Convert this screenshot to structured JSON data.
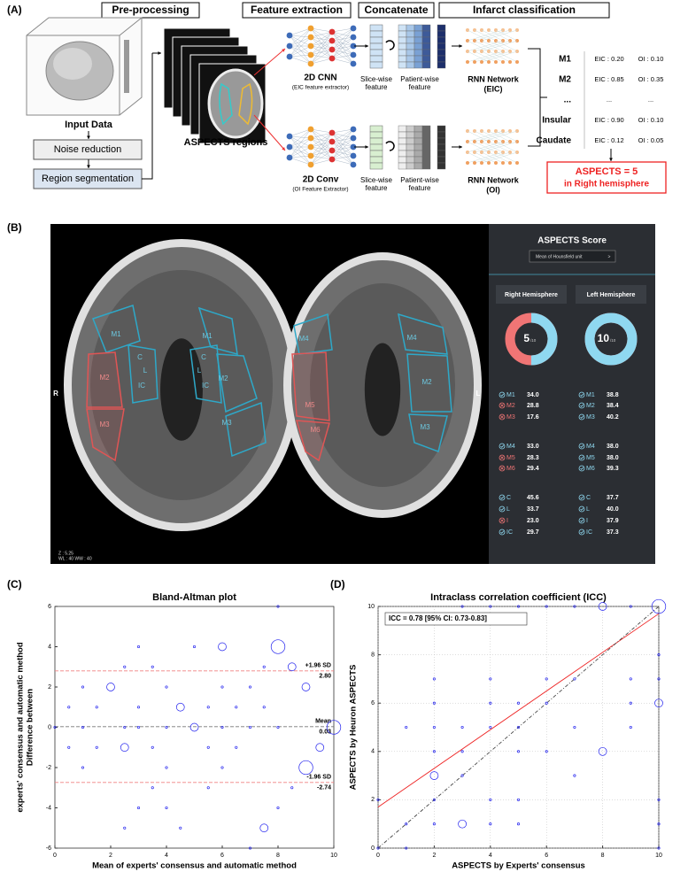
{
  "panel_a": {
    "label": "(A)",
    "steps": [
      "Pre-processing",
      "Feature extraction",
      "Concatenate",
      "Infarct classification"
    ],
    "input": "Input Data",
    "noise": "Noise reduction",
    "segmentation": "Region segmentation",
    "regions": "ASPECTS regions",
    "cnn": {
      "name": "2D CNN",
      "sub": "(EIC feature extractor)"
    },
    "conv": {
      "name": "2D Conv",
      "sub": "(OI Feature Extractor)"
    },
    "slice": [
      "Slice-wise",
      "feature"
    ],
    "patient": [
      "Patient-wise",
      "feature"
    ],
    "rnn_eic": [
      "RNN Network",
      "(EIC)"
    ],
    "rnn_oi": [
      "RNN Network",
      "(OI)"
    ],
    "results": [
      [
        "M1",
        "EIC : 0.20",
        "OI : 0.10"
      ],
      [
        "M2",
        "EIC : 0.85",
        "OI : 0.35"
      ],
      [
        "...",
        "...",
        "..."
      ],
      [
        "Insular",
        "EIC : 0.90",
        "OI : 0.10"
      ],
      [
        "Caudate",
        "EIC : 0.12",
        "OI : 0.05"
      ]
    ],
    "outcome": [
      "ASPECTS = 5",
      "in Right hemisphere"
    ]
  },
  "panel_b": {
    "label": "(B)",
    "side_r": "R",
    "side_l": "L",
    "info": [
      "Z : 5.25",
      "WL : 40 WW : 40"
    ],
    "image1_labels": [
      {
        "text": "M1",
        "infarct": false
      },
      {
        "text": "M2",
        "infarct": true
      },
      {
        "text": "M3",
        "infarct": true
      },
      {
        "text": "C",
        "infarct": false
      },
      {
        "text": "L",
        "infarct": false
      },
      {
        "text": "IC",
        "infarct": false
      },
      {
        "text": "C",
        "infarct": false
      },
      {
        "text": "L",
        "infarct": false
      },
      {
        "text": "IC",
        "infarct": false
      },
      {
        "text": "M1",
        "infarct": false
      },
      {
        "text": "M2",
        "infarct": false
      },
      {
        "text": "M3",
        "infarct": false
      }
    ],
    "image2_labels": [
      {
        "text": "M4",
        "infarct": false
      },
      {
        "text": "M5",
        "infarct": true
      },
      {
        "text": "M6",
        "infarct": true
      },
      {
        "text": "M4",
        "infarct": false
      },
      {
        "text": "M2",
        "infarct": false
      },
      {
        "text": "M3",
        "infarct": false
      }
    ],
    "title": "ASPECTS Score",
    "dropdown": "Mean of Hounsfield unit",
    "dropdown_icon": ">",
    "hemispheres": [
      {
        "name": "Right Hemisphere",
        "score": 5,
        "out_of": {
          "value": 10,
          "label": "/10"
        },
        "regions": [
          {
            "name": "M1",
            "infarct": false,
            "value": "34.0"
          },
          {
            "name": "M2",
            "infarct": true,
            "value": "28.8"
          },
          {
            "name": "M3",
            "infarct": true,
            "value": "17.6"
          },
          {
            "name": "M4",
            "infarct": false,
            "value": "33.0"
          },
          {
            "name": "M5",
            "infarct": true,
            "value": "28.3"
          },
          {
            "name": "M6",
            "infarct": true,
            "value": "29.4"
          },
          {
            "name": "C",
            "infarct": false,
            "value": "45.6"
          },
          {
            "name": "L",
            "infarct": false,
            "value": "33.7"
          },
          {
            "name": "I",
            "infarct": true,
            "value": "23.0"
          },
          {
            "name": "IC",
            "infarct": false,
            "value": "29.7"
          }
        ]
      },
      {
        "name": "Left Hemisphere",
        "score": 10,
        "out_of": {
          "value": 10,
          "label": "/10"
        },
        "regions": [
          {
            "name": "M1",
            "infarct": false,
            "value": "38.8"
          },
          {
            "name": "M2",
            "infarct": false,
            "value": "38.4"
          },
          {
            "name": "M3",
            "infarct": false,
            "value": "40.2"
          },
          {
            "name": "M4",
            "infarct": false,
            "value": "38.0"
          },
          {
            "name": "M5",
            "infarct": false,
            "value": "38.0"
          },
          {
            "name": "M6",
            "infarct": false,
            "value": "39.3"
          },
          {
            "name": "C",
            "infarct": false,
            "value": "37.7"
          },
          {
            "name": "L",
            "infarct": false,
            "value": "40.0"
          },
          {
            "name": "I",
            "infarct": false,
            "value": "37.9"
          },
          {
            "name": "IC",
            "infarct": false,
            "value": "37.3"
          }
        ]
      }
    ]
  },
  "chart_data": [
    {
      "type": "scatter",
      "label": "(C)",
      "title": "Bland-Altman plot",
      "xlabel": "Mean of experts' consensus and automatic method",
      "ylabel": [
        "Difference between",
        "experts' consensus and automatic method"
      ],
      "color": "#2222ee",
      "x": [
        8,
        3,
        5,
        6,
        8,
        2.5,
        3.5,
        7.5,
        8.5,
        1,
        2,
        4,
        6,
        7,
        9,
        0.5,
        1.5,
        3,
        4.5,
        5.5,
        6.5,
        7.5,
        0,
        1,
        2.5,
        3,
        4,
        5,
        6,
        7,
        8,
        10,
        0.5,
        1.5,
        2.5,
        3.5,
        5.5,
        6.5,
        9.5,
        1,
        4,
        6,
        9,
        3.5,
        5.5,
        8.5,
        3,
        4,
        8,
        2.5,
        4.5,
        7.5,
        7
      ],
      "y": [
        6,
        4,
        4,
        4,
        4,
        3,
        3,
        3,
        3,
        2,
        2,
        2,
        2,
        2,
        2,
        1,
        1,
        1,
        1,
        1,
        1,
        1,
        0,
        0,
        0,
        0,
        0,
        0,
        0,
        0,
        0,
        0,
        -1,
        -1,
        -1,
        -1,
        -1,
        -1,
        -1,
        -2,
        -2,
        -2,
        -2,
        -3,
        -3,
        -3,
        -4,
        -4,
        -4,
        -5,
        -5,
        -5,
        -6
      ],
      "sizes": [
        1,
        1,
        1,
        2,
        3,
        1,
        1,
        1,
        2,
        1,
        2,
        1,
        1,
        1,
        2,
        1,
        1,
        1,
        2,
        1,
        1,
        1,
        1,
        1,
        1,
        1,
        1,
        2,
        1,
        1,
        1,
        3,
        1,
        1,
        2,
        1,
        1,
        1,
        2,
        1,
        1,
        1,
        3,
        1,
        1,
        1,
        1,
        1,
        1,
        1,
        1,
        2,
        1
      ],
      "reference_lines": [
        {
          "name": "+1.96 SD",
          "value": 2.8,
          "value_label": "2.80",
          "color": "#f08080"
        },
        {
          "name": "Mean",
          "value": 0.03,
          "color": "#777777"
        },
        {
          "name": "-1.96 SD",
          "value": -2.74,
          "color": "#f08080"
        }
      ],
      "xlim": [
        0,
        10
      ],
      "ylim": [
        -6,
        6
      ],
      "xticks": [
        0,
        2,
        4,
        6,
        8,
        10
      ],
      "yticks": [
        -6,
        -4,
        -2,
        0,
        2,
        4,
        6
      ],
      "grid": false
    },
    {
      "type": "scatter",
      "label": "(D)",
      "title": "Intraclass correlation coefficient (ICC)",
      "xlabel": "ASPECTS by Experts' consensus",
      "ylabel": [
        "ASPECTS by Heuron ASPECTS"
      ],
      "annotation": "ICC = 0.78 [95% CI: 0.73-0.83]",
      "color": "#2222ee",
      "x": [
        3,
        4,
        5,
        6,
        7,
        8,
        9,
        10,
        10,
        10,
        10,
        2,
        4,
        6,
        7,
        9,
        2,
        4,
        5,
        6,
        9,
        1,
        2,
        3,
        4,
        5,
        7,
        9,
        2,
        3,
        5,
        6,
        8,
        2,
        3,
        7,
        0,
        2,
        4,
        5,
        10,
        1,
        2,
        3,
        4,
        5,
        10,
        0,
        1,
        10
      ],
      "y": [
        10,
        10,
        10,
        10,
        10,
        10,
        10,
        10,
        8,
        7,
        6,
        7,
        7,
        7,
        7,
        7,
        6,
        6,
        6,
        6,
        6,
        5,
        5,
        5,
        5,
        5,
        5,
        5,
        4,
        4,
        4,
        4,
        4,
        3,
        3,
        3,
        2,
        2,
        2,
        2,
        2,
        1,
        1,
        1,
        1,
        1,
        1,
        0,
        0,
        0
      ],
      "sizes": [
        1,
        1,
        1,
        1,
        1,
        2,
        1,
        3,
        1,
        1,
        2,
        1,
        1,
        1,
        1,
        1,
        1,
        1,
        1,
        1,
        1,
        1,
        1,
        1,
        1,
        1,
        1,
        1,
        1,
        1,
        1,
        1,
        2,
        2,
        1,
        1,
        1,
        1,
        1,
        1,
        1,
        1,
        1,
        2,
        1,
        1,
        1,
        1,
        1,
        1
      ],
      "fit_lines": [
        {
          "x": [
            0,
            10
          ],
          "y": [
            1.7,
            9.7
          ],
          "color": "#ee2222",
          "dash": false
        },
        {
          "x": [
            0,
            10
          ],
          "y": [
            0,
            10
          ],
          "color": "#444444",
          "dash": true
        }
      ],
      "xlim": [
        0,
        10
      ],
      "ylim": [
        0,
        10
      ],
      "xticks": [
        0,
        2,
        4,
        6,
        8,
        10
      ],
      "yticks": [
        0,
        2,
        4,
        6,
        8,
        10
      ],
      "grid": true
    }
  ]
}
